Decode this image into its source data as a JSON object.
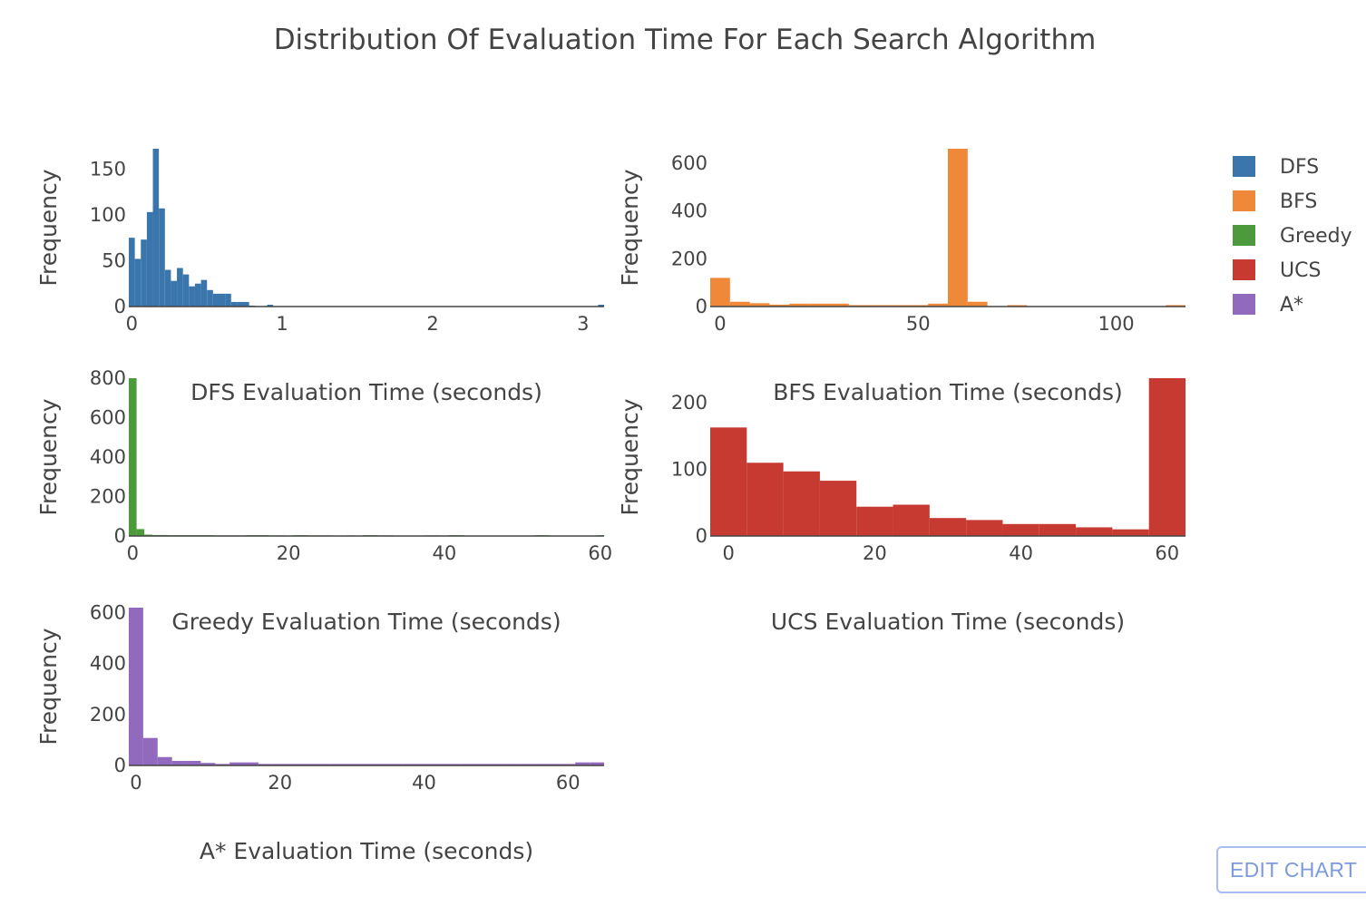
{
  "chart_data": {
    "type": "bar",
    "title": "Distribution Of Evaluation Time For Each Search Algorithm",
    "legend": {
      "placement": "right",
      "entries": [
        {
          "name": "DFS",
          "color": "#3a76ac"
        },
        {
          "name": "BFS",
          "color": "#f0883a"
        },
        {
          "name": "Greedy",
          "color": "#4d9a3d"
        },
        {
          "name": "UCS",
          "color": "#c63a32"
        },
        {
          "name": "A*",
          "color": "#9169bd"
        }
      ]
    },
    "panels": [
      {
        "name": "DFS",
        "color": "#3a76ac",
        "xlabel": "DFS Evaluation Time (seconds)",
        "ylabel": "Frequency",
        "xlim": [
          -0.02,
          3.14
        ],
        "ylim": [
          0,
          172
        ],
        "xticks": [
          0,
          1,
          2,
          3
        ],
        "yticks": [
          0,
          50,
          100,
          150
        ],
        "bin_start": -0.02,
        "bin_width": 0.04,
        "counts": [
          75,
          52,
          73,
          103,
          172,
          107,
          40,
          28,
          42,
          35,
          22,
          25,
          29,
          18,
          14,
          14,
          14,
          5,
          5,
          5,
          1,
          0,
          0,
          2,
          0,
          0,
          0,
          0,
          0,
          0,
          0,
          0,
          0,
          0,
          0,
          0,
          0,
          0,
          0,
          0,
          0,
          0,
          0,
          0,
          0,
          0,
          0,
          0,
          0,
          0,
          0,
          0,
          0,
          0,
          0,
          0,
          0,
          0,
          0,
          0,
          0,
          0,
          0,
          0,
          0,
          0,
          0,
          0,
          0,
          0,
          0,
          0,
          0,
          0,
          0,
          0,
          0,
          0,
          2
        ]
      },
      {
        "name": "BFS",
        "color": "#f0883a",
        "xlabel": "BFS Evaluation Time (seconds)",
        "ylabel": "Frequency",
        "xlim": [
          -2.5,
          117.5
        ],
        "ylim": [
          0,
          660
        ],
        "xticks": [
          0,
          50,
          100
        ],
        "yticks": [
          0,
          200,
          400,
          600
        ],
        "bin_start": -2.5,
        "bin_width": 5,
        "counts": [
          120,
          20,
          14,
          8,
          12,
          12,
          12,
          6,
          6,
          6,
          6,
          12,
          660,
          20,
          0,
          6,
          0,
          0,
          0,
          0,
          0,
          0,
          0,
          6
        ]
      },
      {
        "name": "Greedy",
        "color": "#4d9a3d",
        "xlabel": "Greedy Evaluation Time (seconds)",
        "ylabel": "Frequency",
        "xlim": [
          -0.5,
          60.5
        ],
        "ylim": [
          0,
          800
        ],
        "xticks": [
          0,
          20,
          40,
          60
        ],
        "yticks": [
          0,
          200,
          400,
          600,
          800
        ],
        "bin_start": -0.5,
        "bin_width": 1,
        "counts": [
          800,
          35,
          7,
          5,
          5,
          4,
          4,
          4,
          4,
          4,
          4,
          3,
          3,
          3,
          3,
          4,
          4,
          4,
          3,
          3,
          2,
          4,
          4,
          3,
          3,
          3,
          2,
          2,
          3,
          2,
          4,
          4,
          3,
          3,
          2,
          2,
          2,
          2,
          3,
          3,
          2,
          4,
          4,
          2,
          2,
          2,
          2,
          2,
          2,
          2,
          2,
          2,
          4,
          4,
          2,
          2,
          2,
          2,
          2,
          2,
          4
        ]
      },
      {
        "name": "UCS",
        "color": "#c63a32",
        "xlabel": "UCS Evaluation Time (seconds)",
        "ylabel": "Frequency",
        "xlim": [
          -2.5,
          62.5
        ],
        "ylim": [
          0,
          237
        ],
        "xticks": [
          0,
          20,
          40,
          60
        ],
        "yticks": [
          0,
          100,
          200
        ],
        "bin_start": -2.5,
        "bin_width": 5,
        "counts": [
          163,
          110,
          97,
          83,
          44,
          47,
          27,
          24,
          18,
          18,
          13,
          10,
          237
        ]
      },
      {
        "name": "A*",
        "color": "#9169bd",
        "xlabel": "A* Evaluation Time (seconds)",
        "ylabel": "Frequency",
        "xlim": [
          -1,
          65
        ],
        "ylim": [
          0,
          620
        ],
        "xticks": [
          0,
          20,
          40,
          60
        ],
        "yticks": [
          0,
          200,
          400,
          600
        ],
        "bin_start": -1,
        "bin_width": 2,
        "counts": [
          620,
          108,
          33,
          18,
          18,
          10,
          6,
          12,
          12,
          6,
          6,
          6,
          6,
          6,
          6,
          6,
          6,
          6,
          6,
          6,
          6,
          6,
          6,
          6,
          6,
          6,
          6,
          6,
          6,
          6,
          6,
          12,
          12
        ]
      }
    ]
  },
  "edit_button": {
    "label": "EDIT CHART"
  }
}
